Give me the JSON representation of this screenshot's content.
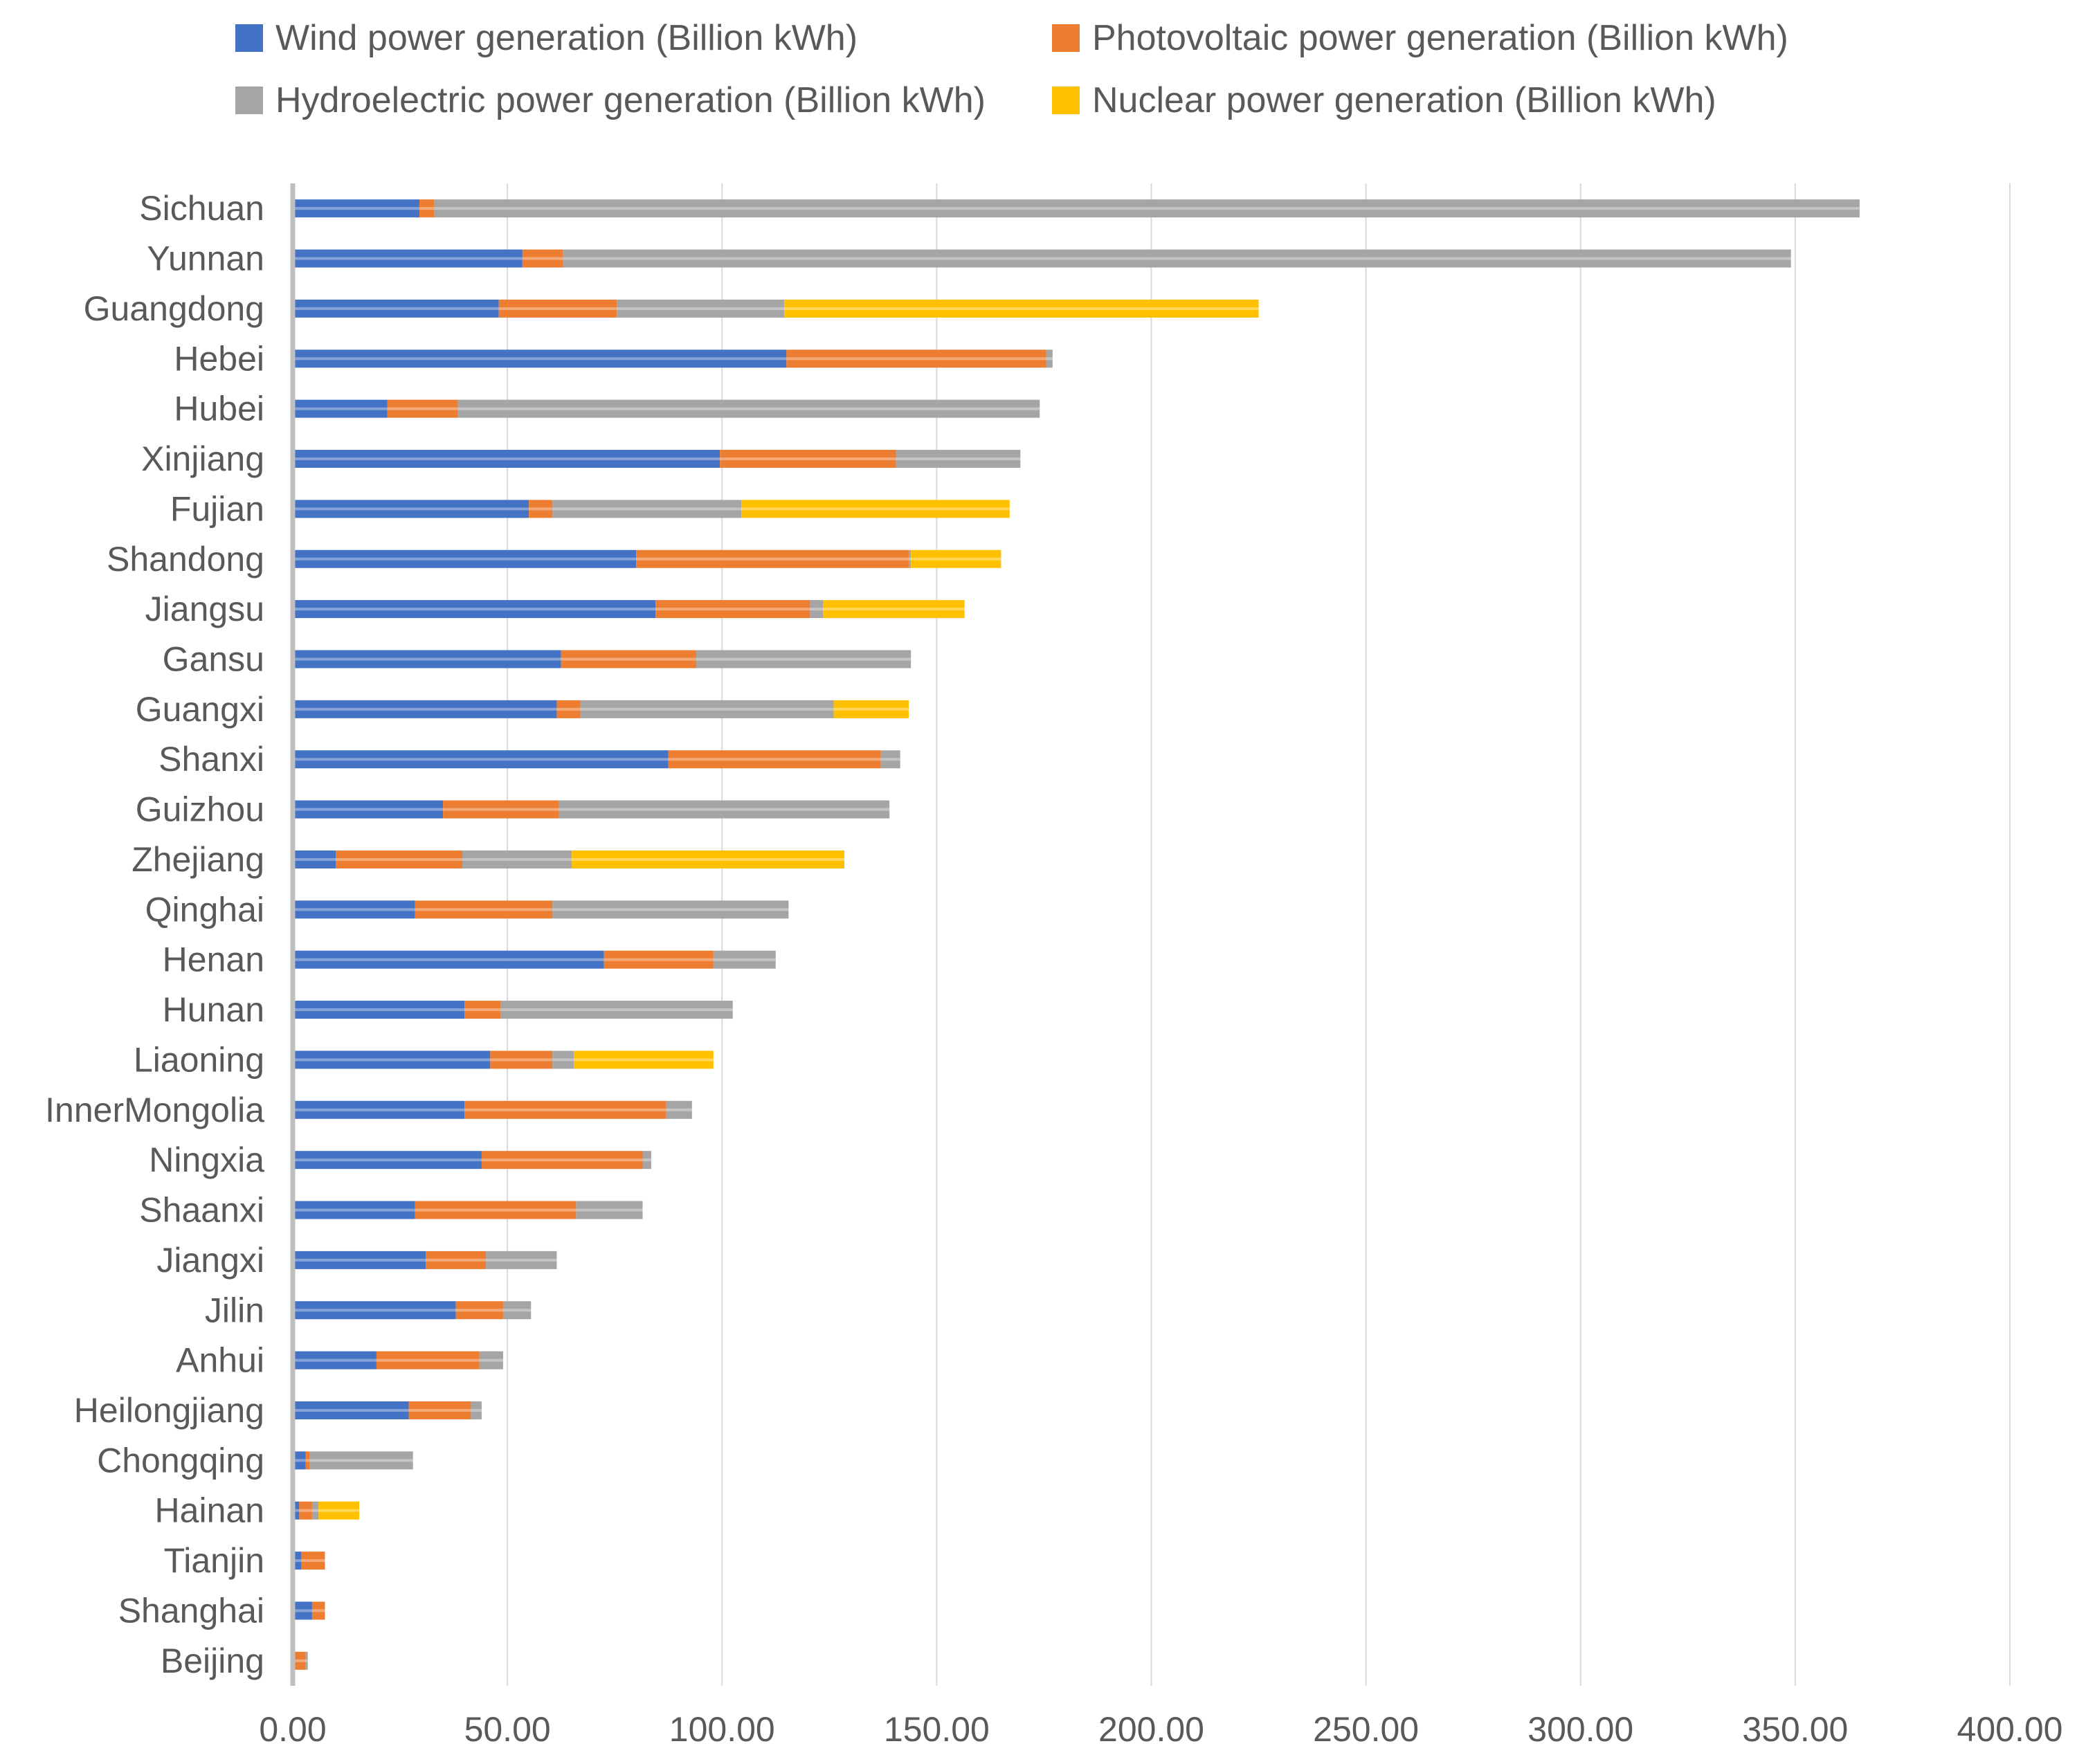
{
  "chart_data": {
    "type": "bar",
    "orientation": "horizontal",
    "stacked": true,
    "title": "",
    "xlabel": "",
    "ylabel": "",
    "xlim": [
      0,
      400
    ],
    "xticks": [
      "0.00",
      "50.00",
      "100.00",
      "150.00",
      "200.00",
      "250.00",
      "300.00",
      "350.00",
      "400.00"
    ],
    "grid": true,
    "legend_position": "top",
    "categories": [
      "Sichuan",
      "Yunnan",
      "Guangdong",
      "Hebei",
      "Hubei",
      "Xinjiang",
      "Fujian",
      "Shandong",
      "Jiangsu",
      "Gansu",
      "Guangxi",
      "Shanxi",
      "Guizhou",
      "Zhejiang",
      "Qinghai",
      "Henan",
      "Hunan",
      "Liaoning",
      "InnerMongolia",
      "Ningxia",
      "Shaanxi",
      "Jiangxi",
      "Jilin",
      "Anhui",
      "Heilongjiang",
      "Chongqing",
      "Hainan",
      "Tianjin",
      "Shanghai",
      "Beijing"
    ],
    "series": [
      {
        "name": "Wind power generation (Billion kWh)",
        "color": "#4472C4",
        "values": [
          29.5,
          53.5,
          48.0,
          115.0,
          22.0,
          99.5,
          55.0,
          80.0,
          84.5,
          62.5,
          61.5,
          87.5,
          35.0,
          10.0,
          28.5,
          72.5,
          40.0,
          46.0,
          40.0,
          44.0,
          28.5,
          31.0,
          38.0,
          19.5,
          27.0,
          3.0,
          1.5,
          2.0,
          4.5,
          0.5
        ]
      },
      {
        "name": "Photovoltaic power generation (Billion kWh)",
        "color": "#ED7D31",
        "values": [
          3.5,
          9.5,
          27.5,
          60.5,
          16.5,
          41.0,
          5.5,
          63.5,
          36.0,
          31.5,
          5.5,
          49.5,
          27.0,
          29.5,
          32.0,
          25.5,
          8.5,
          14.5,
          47.0,
          37.5,
          37.5,
          14.0,
          11.0,
          24.0,
          14.5,
          1.0,
          3.0,
          5.5,
          3.0,
          2.5
        ]
      },
      {
        "name": "Hydroelectric power generation (Billion kWh)",
        "color": "#A5A5A5",
        "values": [
          332.0,
          286.0,
          39.0,
          1.5,
          135.5,
          29.0,
          44.0,
          0.5,
          3.0,
          50.0,
          59.0,
          4.5,
          77.0,
          25.5,
          55.0,
          14.5,
          54.0,
          5.0,
          6.0,
          2.0,
          15.5,
          16.5,
          6.5,
          5.5,
          2.5,
          24.0,
          1.5,
          0.0,
          0.0,
          0.5
        ]
      },
      {
        "name": "Nuclear power generation (Billion kWh)",
        "color": "#FFC000",
        "values": [
          0,
          0,
          110.5,
          0,
          0,
          0,
          62.5,
          21.0,
          33.0,
          0,
          17.5,
          0,
          0,
          63.5,
          0,
          0,
          0,
          32.5,
          0,
          0,
          0,
          0,
          0,
          0,
          0,
          0,
          9.5,
          0,
          0,
          0
        ]
      }
    ]
  }
}
